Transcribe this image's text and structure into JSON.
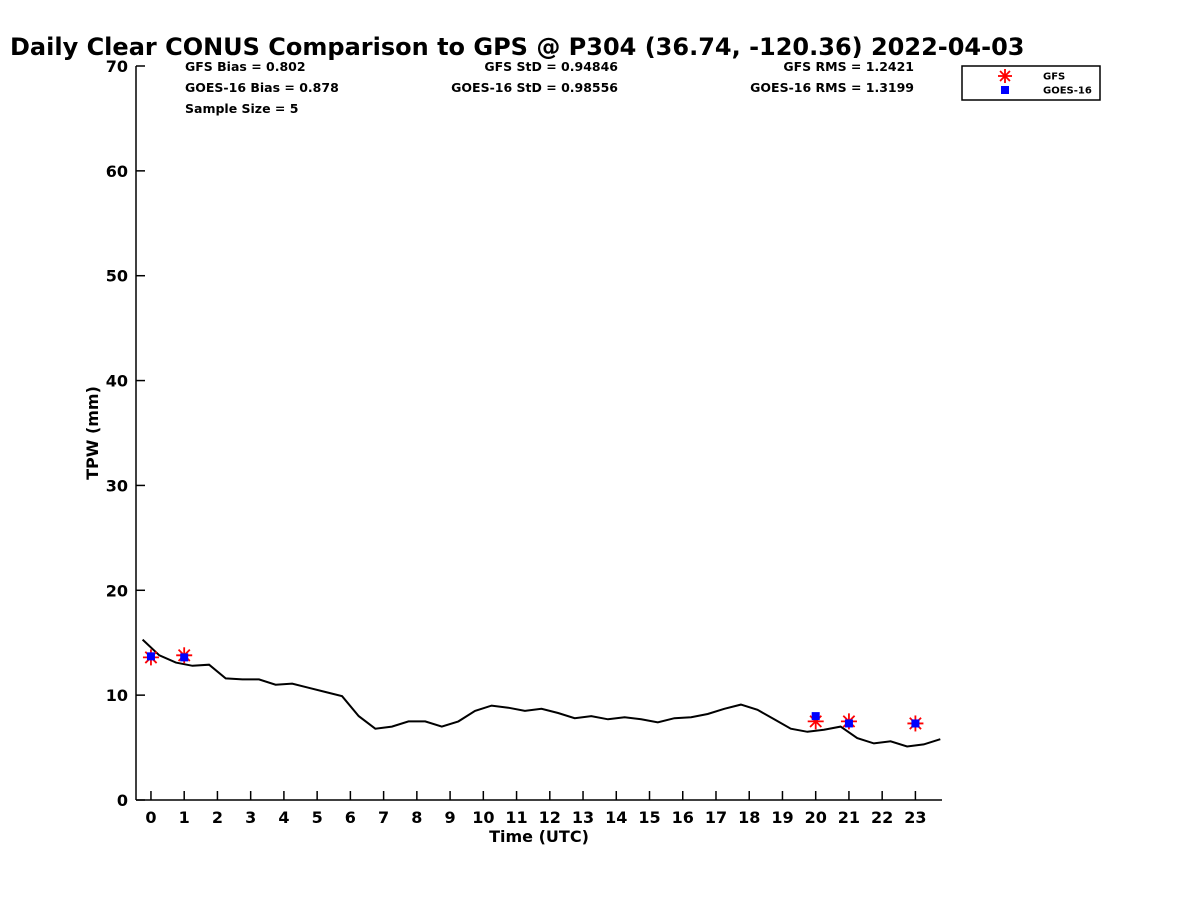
{
  "chart_data": {
    "type": "scatter",
    "title": "Daily Clear CONUS Comparison to GPS @ P304 (36.74, -120.36) 2022-04-03",
    "xlabel": "Time (UTC)",
    "ylabel": "TPW (mm)",
    "xlim": [
      -0.45,
      23.8
    ],
    "ylim": [
      0,
      70
    ],
    "x_ticks": [
      0,
      1,
      2,
      3,
      4,
      5,
      6,
      7,
      8,
      9,
      10,
      11,
      12,
      13,
      14,
      15,
      16,
      17,
      18,
      19,
      20,
      21,
      22,
      23
    ],
    "y_ticks": [
      0,
      10,
      20,
      30,
      40,
      50,
      60,
      70
    ],
    "grid": false,
    "legend_position": "top-right",
    "stats": {
      "gfs_bias": "GFS Bias = 0.802",
      "goes_bias": "GOES-16 Bias = 0.878",
      "sample_size": "Sample Size = 5",
      "gfs_std": "GFS StD = 0.94846",
      "goes_std": "GOES-16 StD = 0.98556",
      "gfs_rms": "GFS RMS = 1.2421",
      "goes_rms": "GOES-16 RMS = 1.3199"
    },
    "gps_line": {
      "x": [
        -0.25,
        0.25,
        0.75,
        1.25,
        1.75,
        2.25,
        2.75,
        3.25,
        3.75,
        4.25,
        4.75,
        5.25,
        5.75,
        6.25,
        6.75,
        7.25,
        7.75,
        8.25,
        8.75,
        9.25,
        9.75,
        10.25,
        10.75,
        11.25,
        11.75,
        12.25,
        12.75,
        13.25,
        13.75,
        14.25,
        14.75,
        15.25,
        15.75,
        16.25,
        16.75,
        17.25,
        17.75,
        18.25,
        18.75,
        19.25,
        19.75,
        20.25,
        20.75,
        21.25,
        21.75,
        22.25,
        22.75,
        23.25,
        23.75
      ],
      "y": [
        15.3,
        13.8,
        13.1,
        12.8,
        12.9,
        11.6,
        11.5,
        11.5,
        11.0,
        11.1,
        10.7,
        10.3,
        9.9,
        8.0,
        6.8,
        7.0,
        7.5,
        7.5,
        7.0,
        7.5,
        8.5,
        9.0,
        8.8,
        8.5,
        8.7,
        8.3,
        7.8,
        8.0,
        7.7,
        7.9,
        7.7,
        7.4,
        7.8,
        7.9,
        8.2,
        8.7,
        9.1,
        8.6,
        7.7,
        6.8,
        6.5,
        6.7,
        7.0,
        5.9,
        5.4,
        5.6,
        5.1,
        5.3,
        5.8
      ]
    },
    "series": [
      {
        "name": "GFS",
        "color": "#ff0000",
        "marker": "asterisk",
        "x": [
          0,
          1,
          20,
          21,
          23
        ],
        "y": [
          13.6,
          13.8,
          7.5,
          7.5,
          7.3
        ]
      },
      {
        "name": "GOES-16",
        "color": "#0000ff",
        "marker": "square",
        "x": [
          0,
          1,
          20,
          21,
          23
        ],
        "y": [
          13.7,
          13.6,
          8.0,
          7.3,
          7.3
        ]
      }
    ]
  }
}
